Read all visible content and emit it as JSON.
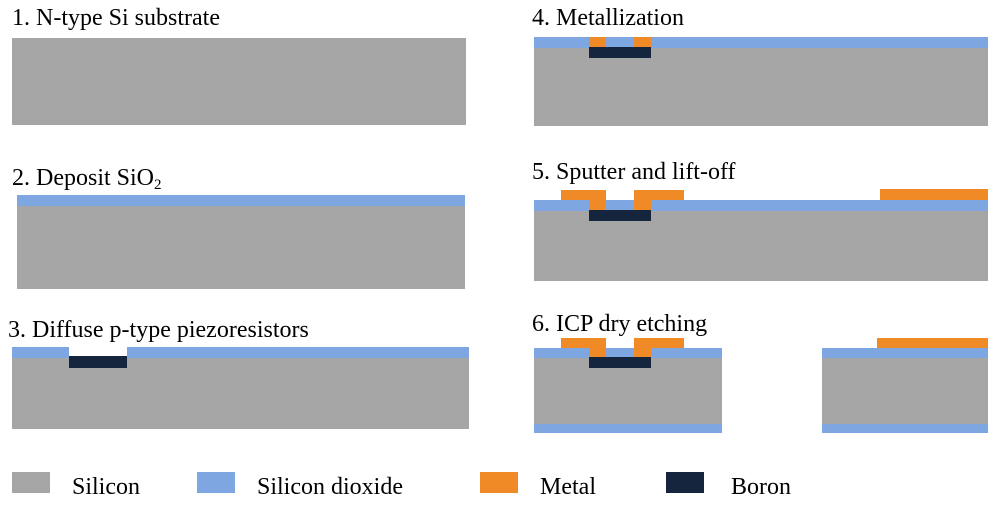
{
  "steps": [
    {
      "number": "1.",
      "text": "N-type Si substrate"
    },
    {
      "number": "2.",
      "text": "Deposit SiO",
      "subscript": "2"
    },
    {
      "number": "3.",
      "text": "Diffuse p-type piezoresistors"
    },
    {
      "number": "4.",
      "text": "Metallization"
    },
    {
      "number": "5.",
      "text": "Sputter and lift-off"
    },
    {
      "number": "6.",
      "text": "ICP dry etching"
    }
  ],
  "legend": [
    {
      "label": "Silicon",
      "color": "#a6a6a6"
    },
    {
      "label": "Silicon dioxide",
      "color": "#7ea6e0"
    },
    {
      "label": "Metal",
      "color": "#f08a26"
    },
    {
      "label": "Boron",
      "color": "#14253d"
    }
  ]
}
